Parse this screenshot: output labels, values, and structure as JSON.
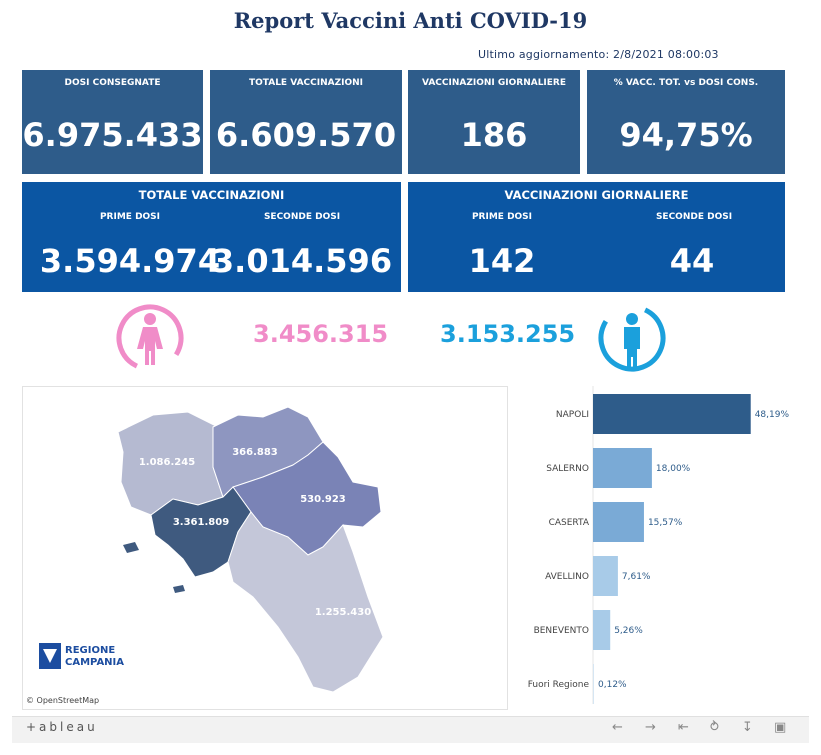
{
  "header": {
    "title": "Report Vaccini Anti COVID-19",
    "updated": "Ultimo aggiornamento: 2/8/2021 08:00:03"
  },
  "kpis": [
    {
      "label": "DOSI CONSEGNATE",
      "value": "6.975.433"
    },
    {
      "label": "TOTALE VACCINAZIONI",
      "value": "6.609.570"
    },
    {
      "label": "VACCINAZIONI GIORNALIERE",
      "value": "186"
    },
    {
      "label": "% VACC. TOT. vs DOSI CONS.",
      "value": "94,75%"
    }
  ],
  "totale_panel": {
    "title": "TOTALE VACCINAZIONI",
    "first_label": "PRIME DOSI",
    "first_value": "3.594.974",
    "second_label": "SECONDE DOSI",
    "second_value": "3.014.596"
  },
  "giornaliere_panel": {
    "title": "VACCINAZIONI GIORNALIERE",
    "first_label": "PRIME DOSI",
    "first_value": "142",
    "second_label": "SECONDE DOSI",
    "second_value": "44"
  },
  "gender": {
    "female_value": "3.456.315",
    "male_value": "3.153.255",
    "female_icon": "female-person-icon",
    "male_icon": "male-person-icon",
    "female_color": "#f08cc8",
    "male_color": "#1ba0dc"
  },
  "map": {
    "labels": {
      "caserta": "1.086.245",
      "benevento": "366.883",
      "avellino": "530.923",
      "napoli": "3.361.809",
      "salerno": "1.255.430"
    },
    "logo_line1": "REGIONE",
    "logo_line2": "CAMPANIA",
    "attribution": "© OpenStreetMap"
  },
  "chart_data": {
    "type": "bar",
    "orientation": "horizontal",
    "categories": [
      "NAPOLI",
      "SALERNO",
      "CASERTA",
      "AVELLINO",
      "BENEVENTO",
      "Fuori Regione"
    ],
    "values": [
      48.19,
      18.0,
      15.57,
      7.61,
      5.26,
      0.12
    ],
    "value_labels": [
      "48,19%",
      "18,00%",
      "15,57%",
      "7,61%",
      "5,26%",
      "0,12%"
    ],
    "colors": [
      "#2e5c8a",
      "#7aaad6",
      "#7aaad6",
      "#a8cbe8",
      "#a8cbe8",
      "#d6e6f3"
    ],
    "xlim": [
      0,
      55
    ]
  },
  "footer": {
    "brand": "+ableau",
    "icons": [
      "undo-icon",
      "redo-icon",
      "revert-icon",
      "share-icon",
      "download-icon",
      "fullscreen-icon"
    ]
  }
}
